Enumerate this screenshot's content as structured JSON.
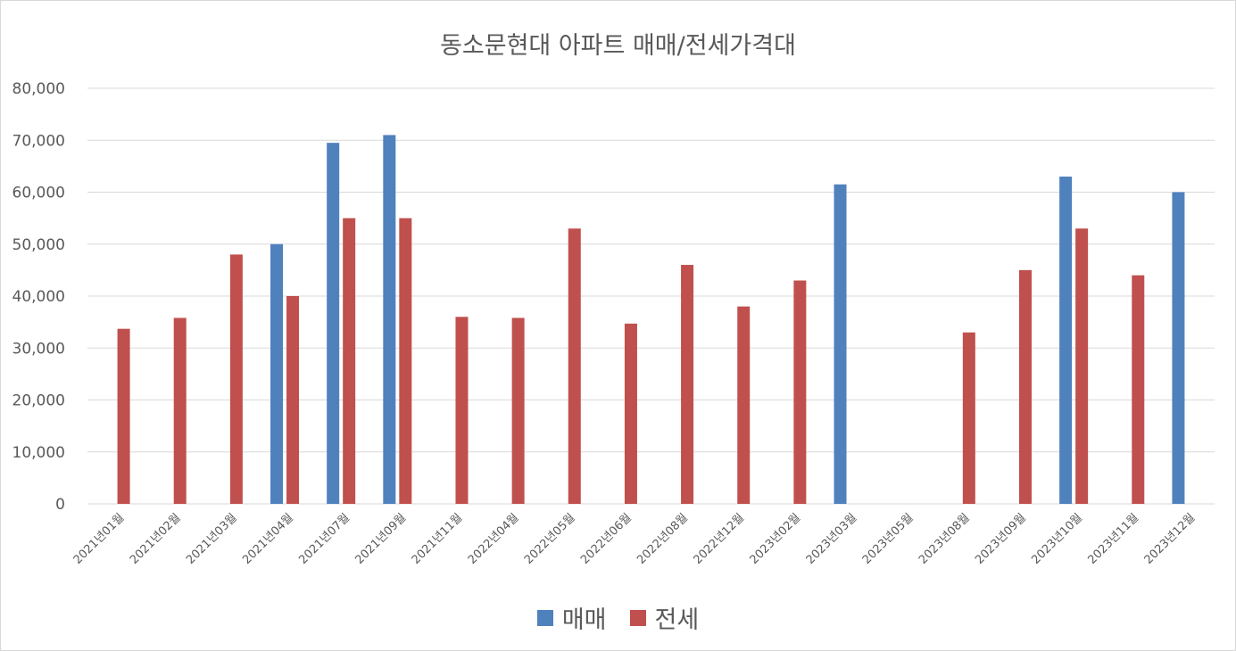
{
  "chart_data": {
    "type": "bar",
    "title": "동소문현대 아파트 매매/전세가격대",
    "xlabel": "",
    "ylabel": "",
    "ylim": [
      0,
      80000
    ],
    "yticks": [
      "0",
      "10,000",
      "20,000",
      "30,000",
      "40,000",
      "50,000",
      "60,000",
      "70,000",
      "80,000"
    ],
    "grid": true,
    "legend_position": "bottom",
    "categories": [
      "2021년01월",
      "2021년02월",
      "2021년03월",
      "2021년04월",
      "2021년07월",
      "2021년09월",
      "2021년11월",
      "2022년04월",
      "2022년05월",
      "2022년06월",
      "2022년08월",
      "2022년12월",
      "2023년02월",
      "2023년03월",
      "2023년05월",
      "2023년08월",
      "2023년09월",
      "2023년10월",
      "2023년11월",
      "2023년12월"
    ],
    "series": [
      {
        "name": "매매",
        "color": "#4f81bd",
        "values": [
          null,
          null,
          null,
          50000,
          69500,
          71000,
          null,
          null,
          null,
          null,
          null,
          null,
          null,
          61500,
          null,
          null,
          null,
          63000,
          null,
          60000
        ]
      },
      {
        "name": "전세",
        "color": "#c0504d",
        "values": [
          33700,
          35800,
          48000,
          40000,
          55000,
          55000,
          36000,
          35800,
          53000,
          34700,
          46000,
          38000,
          43000,
          null,
          null,
          33000,
          45000,
          53000,
          44000,
          null
        ]
      }
    ]
  }
}
